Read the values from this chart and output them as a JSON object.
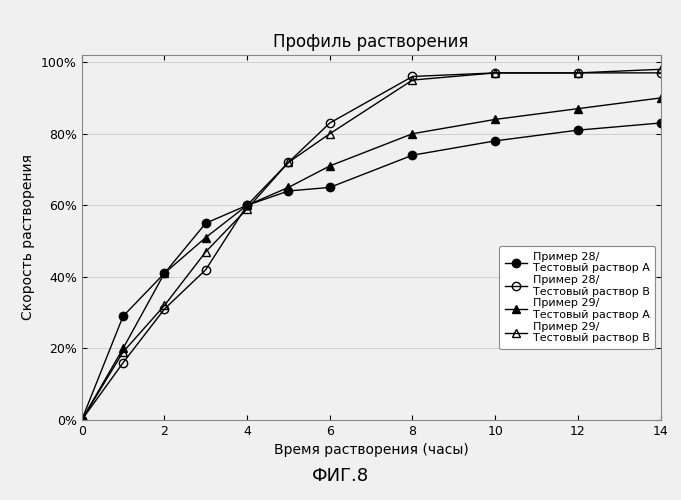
{
  "title": "Профиль растворения",
  "xlabel": "Время растворения (часы)",
  "ylabel": "Скорость растворения",
  "caption": "ФИГ.8",
  "x_ticks": [
    0,
    2,
    4,
    6,
    8,
    10,
    12,
    14
  ],
  "xlim": [
    0,
    14
  ],
  "ylim": [
    0,
    1.02
  ],
  "y_ticks": [
    0.0,
    0.2,
    0.4,
    0.6,
    0.8,
    1.0
  ],
  "series": [
    {
      "label": "Пример 28/\nТестовый раствор А",
      "x": [
        0,
        1,
        2,
        3,
        4,
        5,
        6,
        8,
        10,
        12,
        14
      ],
      "y": [
        0,
        0.29,
        0.41,
        0.55,
        0.6,
        0.64,
        0.65,
        0.74,
        0.78,
        0.81,
        0.83
      ],
      "marker": "o",
      "fillstyle": "full",
      "color": "black",
      "linestyle": "-"
    },
    {
      "label": "Пример 28/\nТестовый раствор В",
      "x": [
        0,
        1,
        2,
        3,
        4,
        5,
        6,
        8,
        10,
        12,
        14
      ],
      "y": [
        0,
        0.16,
        0.31,
        0.42,
        0.6,
        0.72,
        0.83,
        0.96,
        0.97,
        0.97,
        0.97
      ],
      "marker": "o",
      "fillstyle": "none",
      "color": "black",
      "linestyle": "-"
    },
    {
      "label": "Пример 29/\nТестовый раствор А",
      "x": [
        0,
        1,
        2,
        3,
        4,
        5,
        6,
        8,
        10,
        12,
        14
      ],
      "y": [
        0,
        0.2,
        0.41,
        0.51,
        0.6,
        0.65,
        0.71,
        0.8,
        0.84,
        0.87,
        0.9
      ],
      "marker": "^",
      "fillstyle": "full",
      "color": "black",
      "linestyle": "-"
    },
    {
      "label": "Пример 29/\nТестовый раствор В",
      "x": [
        0,
        1,
        2,
        3,
        4,
        5,
        6,
        8,
        10,
        12,
        14
      ],
      "y": [
        0,
        0.19,
        0.32,
        0.47,
        0.59,
        0.72,
        0.8,
        0.95,
        0.97,
        0.97,
        0.98
      ],
      "marker": "^",
      "fillstyle": "none",
      "color": "black",
      "linestyle": "-"
    }
  ],
  "background_color": "#f0f0f0",
  "plot_bg_color": "#f0f0f0",
  "grid_color": "#d0d0d0",
  "title_fontsize": 12,
  "label_fontsize": 10,
  "tick_fontsize": 9,
  "legend_fontsize": 8,
  "caption_fontsize": 13
}
